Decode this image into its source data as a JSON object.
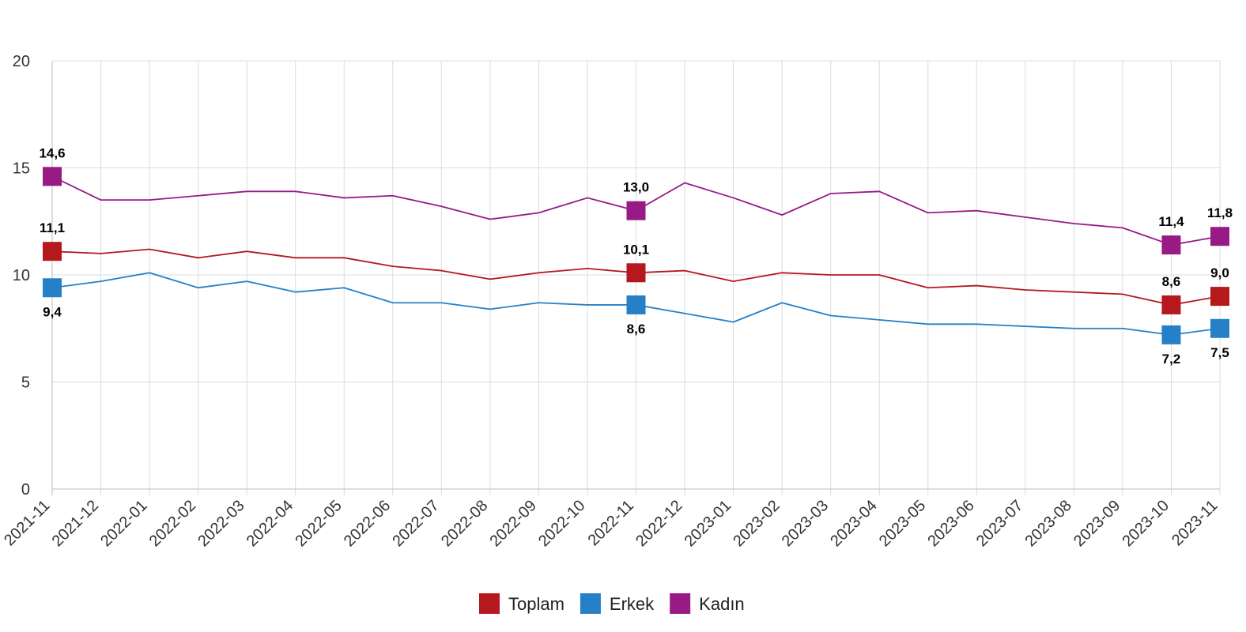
{
  "chart_data": {
    "type": "line",
    "title": "",
    "xlabel": "",
    "ylabel": "",
    "ylim": [
      0,
      20
    ],
    "yticks": [
      0,
      5,
      10,
      15,
      20
    ],
    "grid": true,
    "legend_position": "bottom-center",
    "categories": [
      "2021-11",
      "2021-12",
      "2022-01",
      "2022-02",
      "2022-03",
      "2022-04",
      "2022-05",
      "2022-06",
      "2022-07",
      "2022-08",
      "2022-09",
      "2022-10",
      "2022-11",
      "2022-12",
      "2023-01",
      "2023-02",
      "2023-03",
      "2023-04",
      "2023-05",
      "2023-06",
      "2023-07",
      "2023-08",
      "2023-09",
      "2023-10",
      "2023-11"
    ],
    "series": [
      {
        "name": "Toplam",
        "color": "#b5181d",
        "values": [
          11.1,
          11.0,
          11.2,
          10.8,
          11.1,
          10.8,
          10.8,
          10.4,
          10.2,
          9.8,
          10.1,
          10.3,
          10.1,
          10.2,
          9.7,
          10.1,
          10.0,
          10.0,
          9.4,
          9.5,
          9.3,
          9.2,
          9.1,
          8.6,
          9.0
        ],
        "markers": [
          {
            "index": 0,
            "label": "11,1",
            "position": "above"
          },
          {
            "index": 12,
            "label": "10,1",
            "position": "above"
          },
          {
            "index": 23,
            "label": "8,6",
            "position": "above"
          },
          {
            "index": 24,
            "label": "9,0",
            "position": "above"
          }
        ]
      },
      {
        "name": "Erkek",
        "color": "#2580c8",
        "values": [
          9.4,
          9.7,
          10.1,
          9.4,
          9.7,
          9.2,
          9.4,
          8.7,
          8.7,
          8.4,
          8.7,
          8.6,
          8.6,
          8.2,
          7.8,
          8.7,
          8.1,
          7.9,
          7.7,
          7.7,
          7.6,
          7.5,
          7.5,
          7.2,
          7.5
        ],
        "markers": [
          {
            "index": 0,
            "label": "9,4",
            "position": "below"
          },
          {
            "index": 12,
            "label": "8,6",
            "position": "below"
          },
          {
            "index": 23,
            "label": "7,2",
            "position": "below"
          },
          {
            "index": 24,
            "label": "7,5",
            "position": "below"
          }
        ]
      },
      {
        "name": "Kadın",
        "color": "#981a85",
        "values": [
          14.6,
          13.5,
          13.5,
          13.7,
          13.9,
          13.9,
          13.6,
          13.7,
          13.2,
          12.6,
          12.9,
          13.6,
          13.0,
          14.3,
          13.6,
          12.8,
          13.8,
          13.9,
          12.9,
          13.0,
          12.7,
          12.4,
          12.2,
          11.4,
          11.8
        ],
        "markers": [
          {
            "index": 0,
            "label": "14,6",
            "position": "above"
          },
          {
            "index": 12,
            "label": "13,0",
            "position": "above"
          },
          {
            "index": 23,
            "label": "11,4",
            "position": "above"
          },
          {
            "index": 24,
            "label": "11,8",
            "position": "above"
          }
        ]
      }
    ]
  }
}
